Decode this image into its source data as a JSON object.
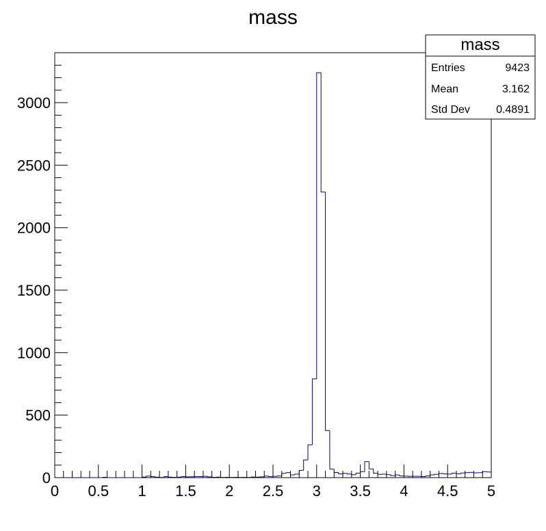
{
  "chart_data": {
    "type": "histogram",
    "title": "mass",
    "xlabel": "",
    "ylabel": "",
    "xlim": [
      0,
      5
    ],
    "ylim": [
      0,
      3400
    ],
    "bin_width": 0.05,
    "x_start": 0,
    "x_ticks": [
      {
        "value": 0,
        "label": "0"
      },
      {
        "value": 0.5,
        "label": "0.5"
      },
      {
        "value": 1,
        "label": "1"
      },
      {
        "value": 1.5,
        "label": "1.5"
      },
      {
        "value": 2,
        "label": "2"
      },
      {
        "value": 2.5,
        "label": "2.5"
      },
      {
        "value": 3,
        "label": "3"
      },
      {
        "value": 3.5,
        "label": "3.5"
      },
      {
        "value": 4,
        "label": "4"
      },
      {
        "value": 4.5,
        "label": "4.5"
      },
      {
        "value": 5,
        "label": "5"
      }
    ],
    "y_ticks": [
      {
        "value": 0,
        "label": "0"
      },
      {
        "value": 500,
        "label": "500"
      },
      {
        "value": 1000,
        "label": "1000"
      },
      {
        "value": 1500,
        "label": "1500"
      },
      {
        "value": 2000,
        "label": "2000"
      },
      {
        "value": 2500,
        "label": "2500"
      },
      {
        "value": 3000,
        "label": "3000"
      }
    ],
    "values": [
      0,
      0,
      0,
      0,
      0,
      0,
      0,
      0,
      0,
      0,
      0,
      3,
      0,
      0,
      0,
      0,
      0,
      0,
      0,
      0,
      5,
      12,
      8,
      4,
      2,
      8,
      4,
      3,
      4,
      8,
      6,
      7,
      9,
      8,
      10,
      6,
      3,
      4,
      2,
      3,
      2,
      3,
      2,
      3,
      2,
      5,
      4,
      6,
      12,
      8,
      10,
      14,
      34,
      40,
      22,
      28,
      58,
      142,
      262,
      790,
      3240,
      2285,
      377,
      68,
      41,
      30,
      34,
      29,
      23,
      36,
      48,
      128,
      70,
      35,
      26,
      28,
      23,
      16,
      21,
      13,
      12,
      10,
      11,
      10,
      8,
      14,
      22,
      27,
      33,
      30,
      28,
      36,
      31,
      37,
      40,
      42,
      38,
      40,
      48,
      45
    ],
    "series": [
      {
        "values_ref": "values",
        "line_color": "#000080"
      }
    ],
    "grid": false,
    "legend": "none",
    "stats_box": {
      "title": "mass",
      "rows": [
        {
          "label": "Entries",
          "value": "9423"
        },
        {
          "label": "Mean",
          "value": "3.162"
        },
        {
          "label": "Std Dev",
          "value": "0.4891"
        }
      ]
    }
  },
  "colors": {
    "histogram_line": "#000080",
    "axes": "#000000",
    "background": "#ffffff"
  }
}
